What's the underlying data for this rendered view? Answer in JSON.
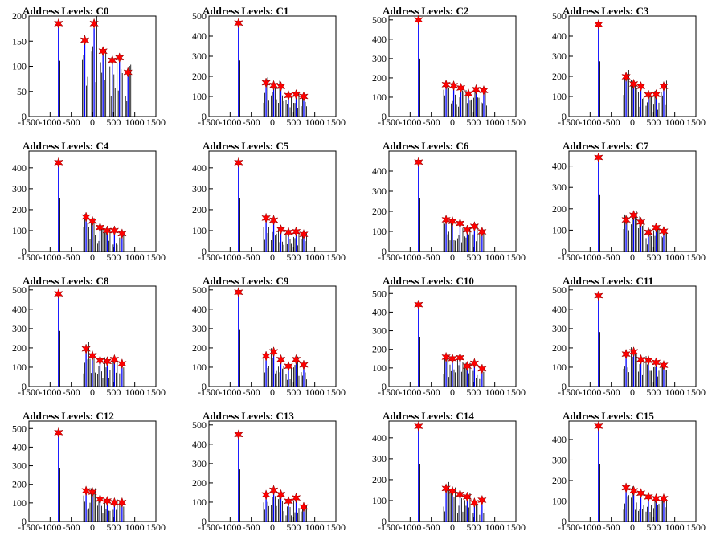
{
  "chart_data": [
    {
      "type": "bar",
      "title": "Address Levels: C0",
      "x_ticks": [
        -1500,
        -1000,
        -500,
        0,
        500,
        1000,
        1500
      ],
      "x_tick_labels": [
        "-1500",
        "-1000",
        "-500",
        "0",
        "500",
        "1000",
        "1500"
      ],
      "y_ticks": [
        0,
        50,
        100,
        150,
        200
      ],
      "ylim": [
        0,
        200
      ],
      "main_peak": {
        "x": -800,
        "y": 185
      },
      "peaks": [
        {
          "x": -180,
          "y": 152
        },
        {
          "x": 40,
          "y": 185
        },
        {
          "x": 250,
          "y": 130
        },
        {
          "x": 470,
          "y": 112
        },
        {
          "x": 640,
          "y": 117
        },
        {
          "x": 840,
          "y": 88
        }
      ],
      "colors": {
        "main": "#0000ff",
        "peaks": "#000000",
        "marker": "#ff0000"
      }
    },
    {
      "type": "bar",
      "title": "Address Levels: C1",
      "x_ticks": [
        -1500,
        -1000,
        -500,
        0,
        500,
        1000,
        1500
      ],
      "x_tick_labels": [
        "-1500",
        "-1000",
        "-500",
        "0",
        "500",
        "1000",
        "1500"
      ],
      "y_ticks": [
        0,
        100,
        200,
        300,
        400,
        500
      ],
      "ylim": [
        0,
        500
      ],
      "main_peak": {
        "x": -800,
        "y": 465
      },
      "peaks": [
        {
          "x": -150,
          "y": 168
        },
        {
          "x": 30,
          "y": 155
        },
        {
          "x": 200,
          "y": 150
        },
        {
          "x": 380,
          "y": 105
        },
        {
          "x": 560,
          "y": 110
        },
        {
          "x": 740,
          "y": 100
        }
      ],
      "colors": {
        "main": "#0000ff",
        "peaks": "#000000",
        "marker": "#ff0000"
      }
    },
    {
      "type": "bar",
      "title": "Address Levels: C2",
      "x_ticks": [
        -1500,
        -1000,
        -500,
        0,
        500,
        1000,
        1500
      ],
      "x_tick_labels": [
        "-1500",
        "-1000",
        "-500",
        "0",
        "500",
        "1000",
        "1500"
      ],
      "y_ticks": [
        0,
        100,
        200,
        300,
        400,
        500
      ],
      "ylim": [
        0,
        520
      ],
      "main_peak": {
        "x": -800,
        "y": 500
      },
      "peaks": [
        {
          "x": -150,
          "y": 165
        },
        {
          "x": 30,
          "y": 160
        },
        {
          "x": 200,
          "y": 148
        },
        {
          "x": 380,
          "y": 118
        },
        {
          "x": 560,
          "y": 140
        },
        {
          "x": 740,
          "y": 135
        }
      ],
      "colors": {
        "main": "#0000ff",
        "peaks": "#000000",
        "marker": "#ff0000"
      }
    },
    {
      "type": "bar",
      "title": "Address Levels: C3",
      "x_ticks": [
        -1500,
        -1000,
        -500,
        0,
        500,
        1000,
        1500
      ],
      "x_tick_labels": [
        "-1500",
        "-1000",
        "-500",
        "0",
        "500",
        "1000",
        "1500"
      ],
      "y_ticks": [
        0,
        100,
        200,
        300,
        400,
        500
      ],
      "ylim": [
        0,
        500
      ],
      "main_peak": {
        "x": -800,
        "y": 458
      },
      "peaks": [
        {
          "x": -150,
          "y": 198
        },
        {
          "x": 30,
          "y": 162
        },
        {
          "x": 200,
          "y": 150
        },
        {
          "x": 380,
          "y": 108
        },
        {
          "x": 560,
          "y": 110
        },
        {
          "x": 740,
          "y": 150
        }
      ],
      "colors": {
        "main": "#0000ff",
        "peaks": "#000000",
        "marker": "#ff0000"
      }
    },
    {
      "type": "bar",
      "title": "Address Levels: C4",
      "x_ticks": [
        -1500,
        -1000,
        -500,
        0,
        500,
        1000,
        1500
      ],
      "x_tick_labels": [
        "-1500",
        "-1000",
        "-500",
        "0",
        "500",
        "1000",
        "1500"
      ],
      "y_ticks": [
        0,
        100,
        200,
        300,
        400
      ],
      "ylim": [
        0,
        480
      ],
      "main_peak": {
        "x": -800,
        "y": 425
      },
      "peaks": [
        {
          "x": -150,
          "y": 165
        },
        {
          "x": 0,
          "y": 145
        },
        {
          "x": 180,
          "y": 115
        },
        {
          "x": 350,
          "y": 100
        },
        {
          "x": 520,
          "y": 100
        },
        {
          "x": 700,
          "y": 85
        }
      ],
      "colors": {
        "main": "#0000ff",
        "peaks": "#000000",
        "marker": "#ff0000"
      }
    },
    {
      "type": "bar",
      "title": "Address Levels: C5",
      "x_ticks": [
        -1500,
        -1000,
        -500,
        0,
        500,
        1000,
        1500
      ],
      "x_tick_labels": [
        "-1500",
        "-1000",
        "-500",
        "0",
        "500",
        "1000",
        "1500"
      ],
      "y_ticks": [
        0,
        100,
        200,
        300,
        400
      ],
      "ylim": [
        0,
        480
      ],
      "main_peak": {
        "x": -800,
        "y": 425
      },
      "peaks": [
        {
          "x": -150,
          "y": 160
        },
        {
          "x": 30,
          "y": 150
        },
        {
          "x": 200,
          "y": 105
        },
        {
          "x": 380,
          "y": 92
        },
        {
          "x": 560,
          "y": 95
        },
        {
          "x": 740,
          "y": 82
        }
      ],
      "colors": {
        "main": "#0000ff",
        "peaks": "#000000",
        "marker": "#ff0000"
      }
    },
    {
      "type": "bar",
      "title": "Address Levels: C6",
      "x_ticks": [
        -1500,
        -1000,
        -500,
        0,
        500,
        1000,
        1500
      ],
      "x_tick_labels": [
        "-1500",
        "-1000",
        "-500",
        "0",
        "500",
        "1000",
        "1500"
      ],
      "y_ticks": [
        0,
        100,
        200,
        300,
        400
      ],
      "ylim": [
        0,
        500
      ],
      "main_peak": {
        "x": -800,
        "y": 445
      },
      "peaks": [
        {
          "x": -150,
          "y": 158
        },
        {
          "x": 0,
          "y": 150
        },
        {
          "x": 180,
          "y": 140
        },
        {
          "x": 350,
          "y": 108
        },
        {
          "x": 520,
          "y": 125
        },
        {
          "x": 700,
          "y": 98
        }
      ],
      "colors": {
        "main": "#0000ff",
        "peaks": "#000000",
        "marker": "#ff0000"
      }
    },
    {
      "type": "bar",
      "title": "Address Levels: C7",
      "x_ticks": [
        -1500,
        -1000,
        -500,
        0,
        500,
        1000,
        1500
      ],
      "x_tick_labels": [
        "-1500",
        "-1000",
        "-500",
        "0",
        "500",
        "1000",
        "1500"
      ],
      "y_ticks": [
        0,
        100,
        200,
        300,
        400
      ],
      "ylim": [
        0,
        470
      ],
      "main_peak": {
        "x": -800,
        "y": 440
      },
      "peaks": [
        {
          "x": -150,
          "y": 148
        },
        {
          "x": 30,
          "y": 170
        },
        {
          "x": 200,
          "y": 138
        },
        {
          "x": 380,
          "y": 90
        },
        {
          "x": 560,
          "y": 112
        },
        {
          "x": 740,
          "y": 95
        }
      ],
      "colors": {
        "main": "#0000ff",
        "peaks": "#000000",
        "marker": "#ff0000"
      }
    },
    {
      "type": "bar",
      "title": "Address Levels: C8",
      "x_ticks": [
        -1500,
        -1000,
        -500,
        0,
        500,
        1000,
        1500
      ],
      "x_tick_labels": [
        "-1500",
        "-1000",
        "-500",
        "0",
        "500",
        "1000",
        "1500"
      ],
      "y_ticks": [
        0,
        100,
        200,
        300,
        400,
        500
      ],
      "ylim": [
        0,
        520
      ],
      "main_peak": {
        "x": -800,
        "y": 480
      },
      "peaks": [
        {
          "x": -150,
          "y": 195
        },
        {
          "x": 0,
          "y": 160
        },
        {
          "x": 180,
          "y": 135
        },
        {
          "x": 350,
          "y": 130
        },
        {
          "x": 520,
          "y": 140
        },
        {
          "x": 700,
          "y": 118
        }
      ],
      "colors": {
        "main": "#0000ff",
        "peaks": "#000000",
        "marker": "#ff0000"
      }
    },
    {
      "type": "bar",
      "title": "Address Levels: C9",
      "x_ticks": [
        -1500,
        -1000,
        -500,
        0,
        500,
        1000,
        1500
      ],
      "x_tick_labels": [
        "-1500",
        "-1000",
        "-500",
        "0",
        "500",
        "1000",
        "1500"
      ],
      "y_ticks": [
        0,
        100,
        200,
        300,
        400,
        500
      ],
      "ylim": [
        0,
        520
      ],
      "main_peak": {
        "x": -800,
        "y": 488
      },
      "peaks": [
        {
          "x": -150,
          "y": 158
        },
        {
          "x": 30,
          "y": 180
        },
        {
          "x": 200,
          "y": 140
        },
        {
          "x": 380,
          "y": 105
        },
        {
          "x": 560,
          "y": 140
        },
        {
          "x": 740,
          "y": 112
        }
      ],
      "colors": {
        "main": "#0000ff",
        "peaks": "#000000",
        "marker": "#ff0000"
      }
    },
    {
      "type": "bar",
      "title": "Address Levels: C10",
      "x_ticks": [
        -1500,
        -1000,
        -500,
        0,
        500,
        1000,
        1500
      ],
      "x_tick_labels": [
        "-1500",
        "-1000",
        "-500",
        "0",
        "500",
        "1000",
        "1500"
      ],
      "y_ticks": [
        0,
        100,
        200,
        300,
        400,
        500
      ],
      "ylim": [
        0,
        540
      ],
      "main_peak": {
        "x": -800,
        "y": 440
      },
      "peaks": [
        {
          "x": -150,
          "y": 158
        },
        {
          "x": 0,
          "y": 150
        },
        {
          "x": 180,
          "y": 155
        },
        {
          "x": 350,
          "y": 110
        },
        {
          "x": 520,
          "y": 125
        },
        {
          "x": 700,
          "y": 95
        }
      ],
      "colors": {
        "main": "#0000ff",
        "peaks": "#000000",
        "marker": "#ff0000"
      }
    },
    {
      "type": "bar",
      "title": "Address Levels: C11",
      "x_ticks": [
        -1500,
        -1000,
        -500,
        0,
        500,
        1000,
        1500
      ],
      "x_tick_labels": [
        "-1500",
        "-1000",
        "-500",
        "0",
        "500",
        "1000",
        "1500"
      ],
      "y_ticks": [
        0,
        100,
        200,
        300,
        400,
        500
      ],
      "ylim": [
        0,
        520
      ],
      "main_peak": {
        "x": -800,
        "y": 470
      },
      "peaks": [
        {
          "x": -150,
          "y": 168
        },
        {
          "x": 30,
          "y": 180
        },
        {
          "x": 200,
          "y": 140
        },
        {
          "x": 380,
          "y": 135
        },
        {
          "x": 560,
          "y": 125
        },
        {
          "x": 740,
          "y": 110
        }
      ],
      "colors": {
        "main": "#0000ff",
        "peaks": "#000000",
        "marker": "#ff0000"
      }
    },
    {
      "type": "bar",
      "title": "Address Levels: C12",
      "x_ticks": [
        -1500,
        -1000,
        -500,
        0,
        500,
        1000,
        1500
      ],
      "x_tick_labels": [
        "-1500",
        "-1000",
        "-500",
        "0",
        "500",
        "1000",
        "1500"
      ],
      "y_ticks": [
        0,
        100,
        200,
        300,
        400,
        500
      ],
      "ylim": [
        0,
        540
      ],
      "main_peak": {
        "x": -800,
        "y": 478
      },
      "peaks": [
        {
          "x": -150,
          "y": 165
        },
        {
          "x": 0,
          "y": 158
        },
        {
          "x": 180,
          "y": 120
        },
        {
          "x": 350,
          "y": 110
        },
        {
          "x": 520,
          "y": 102
        },
        {
          "x": 700,
          "y": 102
        }
      ],
      "colors": {
        "main": "#0000ff",
        "peaks": "#000000",
        "marker": "#ff0000"
      }
    },
    {
      "type": "bar",
      "title": "Address Levels: C13",
      "x_ticks": [
        -1500,
        -1000,
        -500,
        0,
        500,
        1000,
        1500
      ],
      "x_tick_labels": [
        "-1500",
        "-1000",
        "-500",
        "0",
        "500",
        "1000",
        "1500"
      ],
      "y_ticks": [
        0,
        100,
        200,
        300,
        400,
        500
      ],
      "ylim": [
        0,
        520
      ],
      "main_peak": {
        "x": -800,
        "y": 450
      },
      "peaks": [
        {
          "x": -150,
          "y": 138
        },
        {
          "x": 30,
          "y": 162
        },
        {
          "x": 200,
          "y": 140
        },
        {
          "x": 380,
          "y": 105
        },
        {
          "x": 560,
          "y": 122
        },
        {
          "x": 740,
          "y": 75
        }
      ],
      "colors": {
        "main": "#0000ff",
        "peaks": "#000000",
        "marker": "#ff0000"
      }
    },
    {
      "type": "bar",
      "title": "Address Levels: C14",
      "x_ticks": [
        -1500,
        -1000,
        -500,
        0,
        500,
        1000,
        1500
      ],
      "x_tick_labels": [
        "-1500",
        "-1000",
        "-500",
        "0",
        "500",
        "1000",
        "1500"
      ],
      "y_ticks": [
        0,
        100,
        200,
        300,
        400
      ],
      "ylim": [
        0,
        480
      ],
      "main_peak": {
        "x": -800,
        "y": 455
      },
      "peaks": [
        {
          "x": -150,
          "y": 158
        },
        {
          "x": 0,
          "y": 145
        },
        {
          "x": 180,
          "y": 130
        },
        {
          "x": 350,
          "y": 118
        },
        {
          "x": 520,
          "y": 90
        },
        {
          "x": 700,
          "y": 102
        }
      ],
      "colors": {
        "main": "#0000ff",
        "peaks": "#000000",
        "marker": "#ff0000"
      }
    },
    {
      "type": "bar",
      "title": "Address Levels: C15",
      "x_ticks": [
        -1500,
        -1000,
        -500,
        0,
        500,
        1000,
        1500
      ],
      "x_tick_labels": [
        "-1500",
        "-1000",
        "-500",
        "0",
        "500",
        "1000",
        "1500"
      ],
      "y_ticks": [
        0,
        100,
        200,
        300,
        400
      ],
      "ylim": [
        0,
        490
      ],
      "main_peak": {
        "x": -800,
        "y": 465
      },
      "peaks": [
        {
          "x": -150,
          "y": 165
        },
        {
          "x": 30,
          "y": 150
        },
        {
          "x": 200,
          "y": 138
        },
        {
          "x": 380,
          "y": 120
        },
        {
          "x": 560,
          "y": 112
        },
        {
          "x": 740,
          "y": 112
        }
      ],
      "colors": {
        "main": "#0000ff",
        "peaks": "#000000",
        "marker": "#ff0000"
      }
    }
  ]
}
